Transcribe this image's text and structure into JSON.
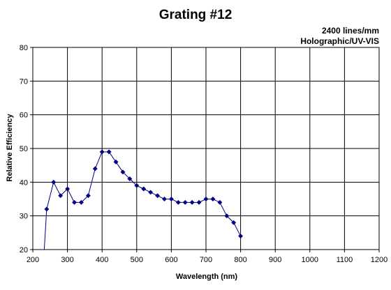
{
  "chart_data": {
    "type": "scatter",
    "title": "Grating #12",
    "subtitle_lines": [
      "2400 lines/mm",
      "Holographic/UV-VIS"
    ],
    "xlabel": "Wavelength (nm)",
    "ylabel": "Relative Efficiency",
    "xlim": [
      200,
      1200
    ],
    "ylim": [
      20,
      80
    ],
    "x_ticks": [
      200,
      300,
      400,
      500,
      600,
      700,
      800,
      900,
      1000,
      1100,
      1200
    ],
    "y_ticks": [
      20,
      30,
      40,
      50,
      60,
      70,
      80
    ],
    "grid": true,
    "legend": "none",
    "series": [
      {
        "color": "#000080",
        "marker": "diamond",
        "line": true,
        "x": [
          240,
          260,
          280,
          300,
          320,
          340,
          360,
          380,
          400,
          420,
          440,
          460,
          480,
          500,
          520,
          540,
          560,
          580,
          600,
          620,
          640,
          660,
          680,
          700,
          720,
          740,
          760,
          780,
          800
        ],
        "y": [
          32,
          40,
          36,
          38,
          34,
          34,
          36,
          44,
          49,
          49,
          46,
          43,
          41,
          39,
          38,
          37,
          36,
          35,
          35,
          34,
          34,
          34,
          34,
          35,
          35,
          34,
          30,
          28,
          24
        ]
      }
    ]
  }
}
